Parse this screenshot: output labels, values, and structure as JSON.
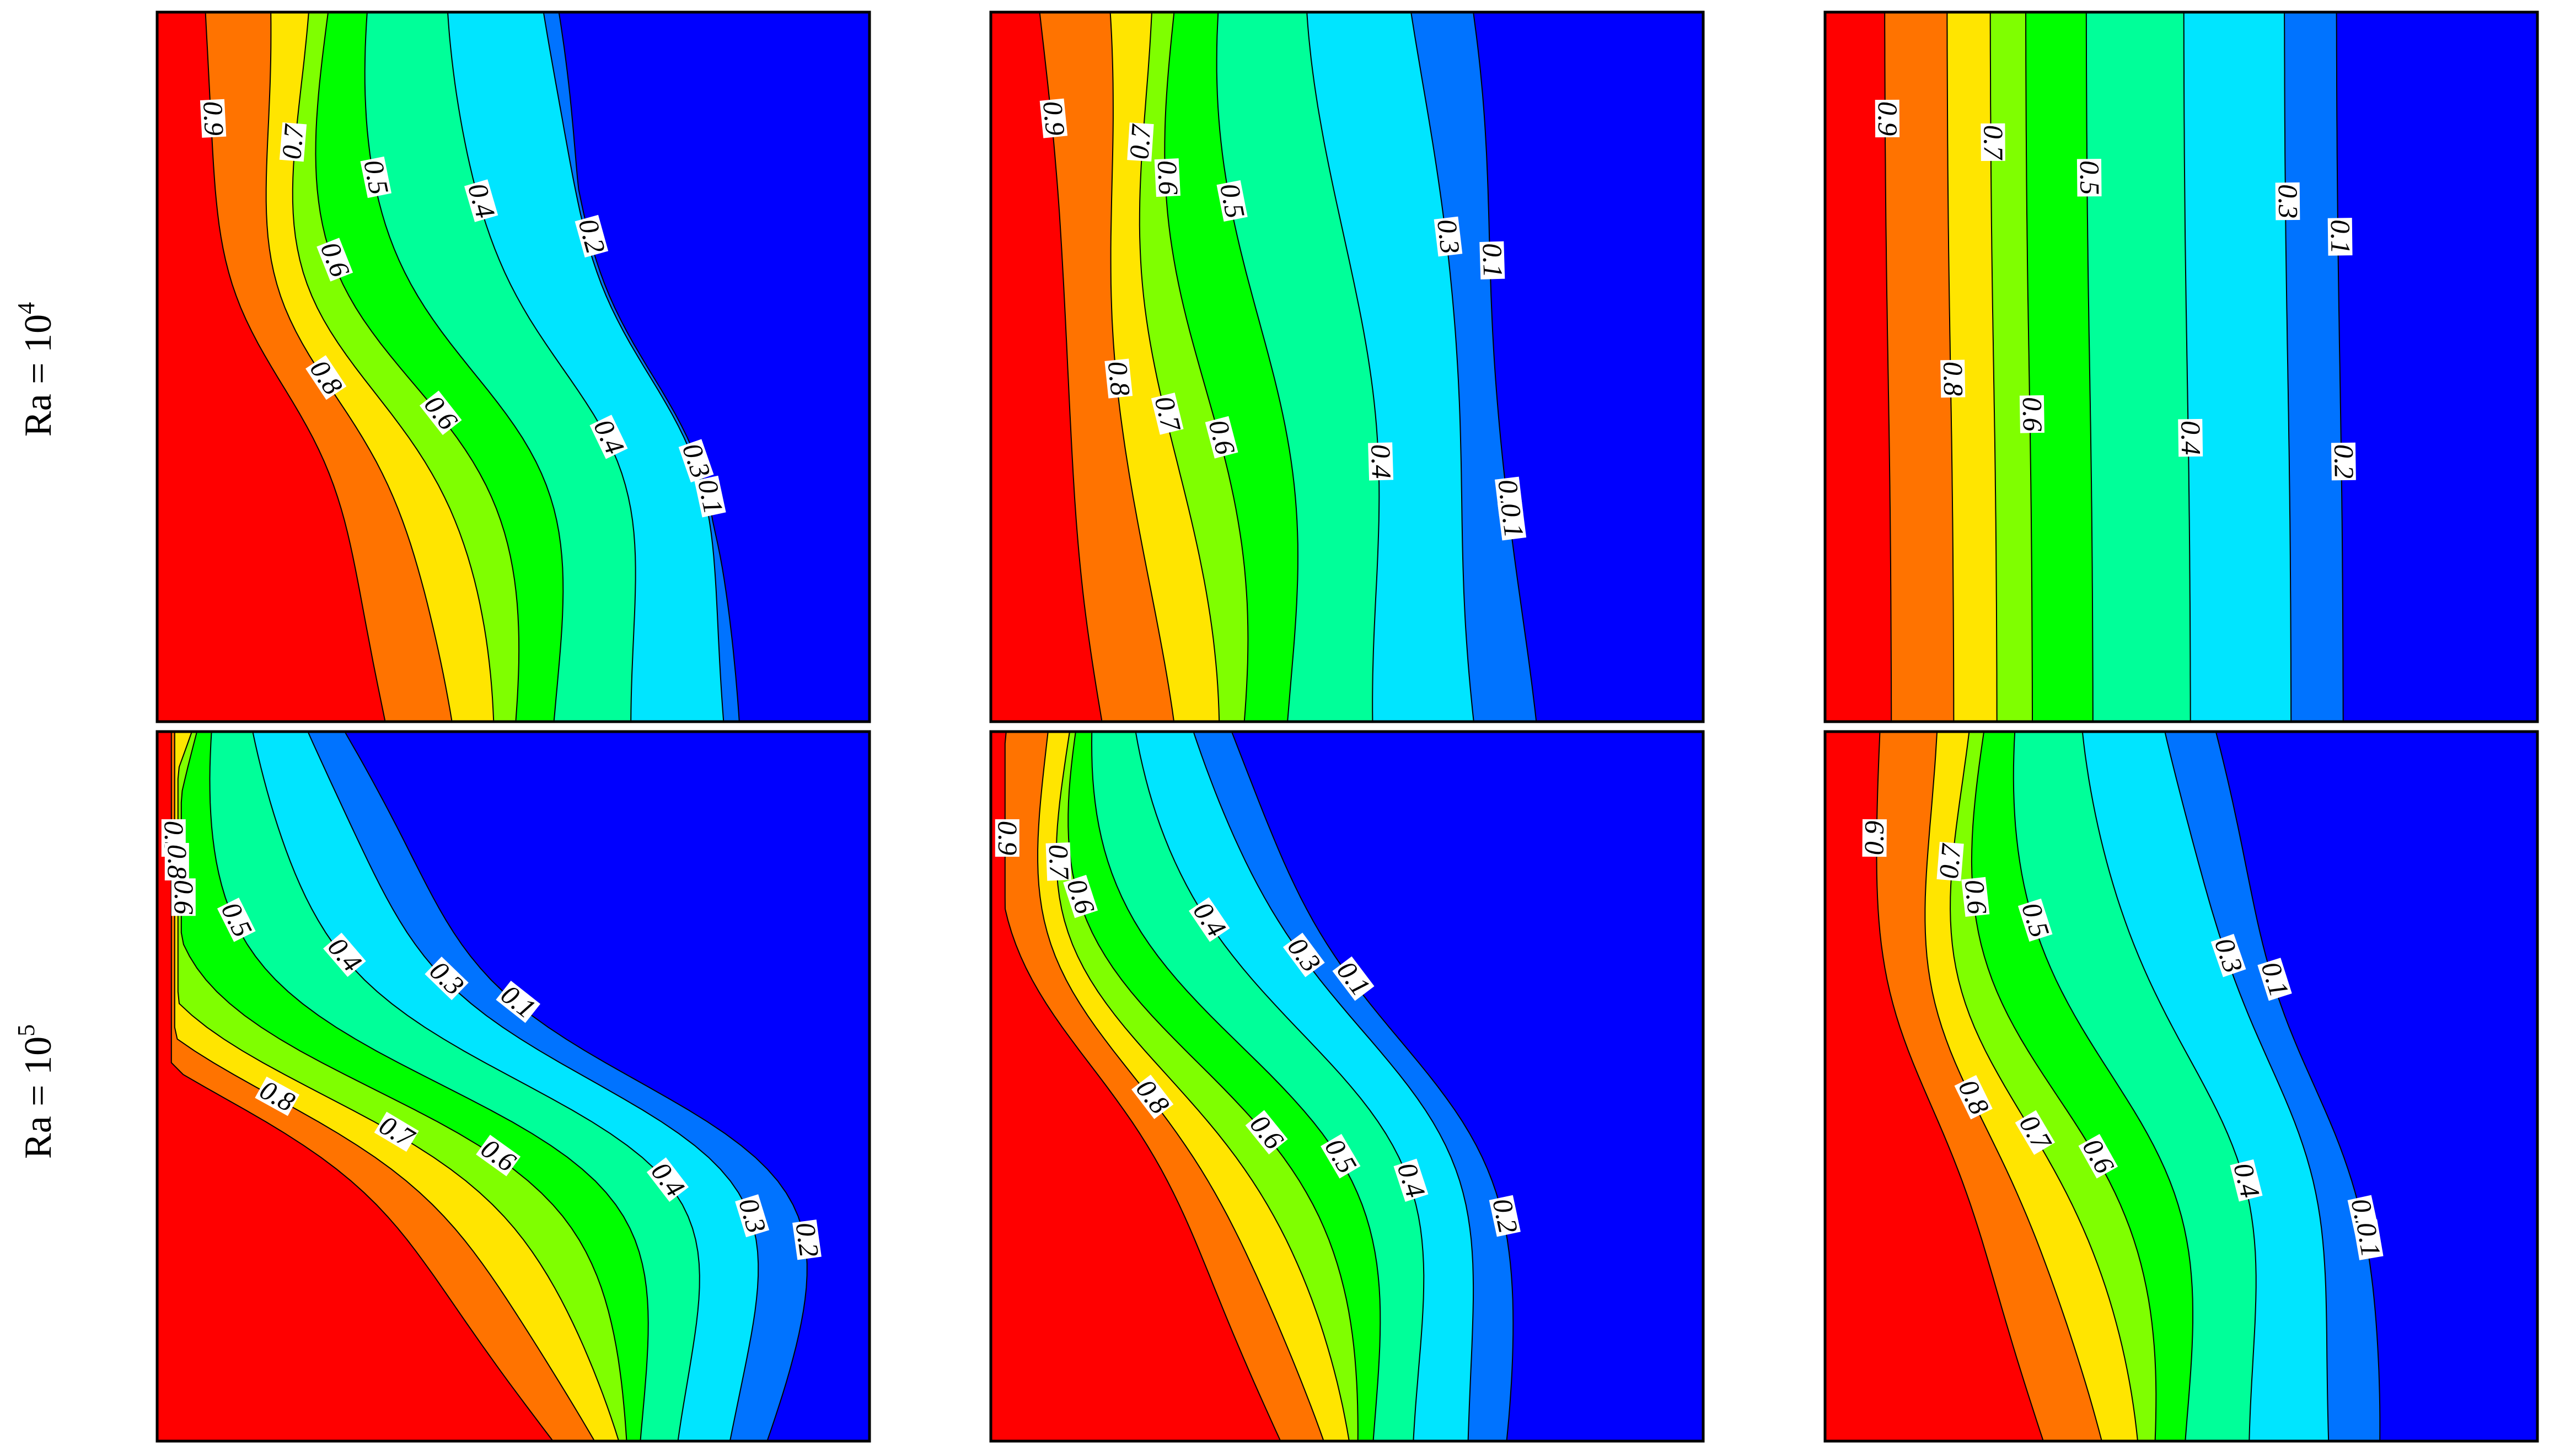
{
  "palette": [
    "#0000ff",
    "#0073ff",
    "#00e5ff",
    "#00ff99",
    "#00ff00",
    "#7fff00",
    "#ffe500",
    "#ff7300",
    "#ff0000"
  ],
  "row_labels": {
    "row0": {
      "base": "Ra = 10",
      "exp": "4"
    },
    "row1": {
      "base": "Ra = 10",
      "exp": "5"
    }
  },
  "chart_data": {
    "type": "contour",
    "title": "",
    "field": "isotherms (filled contour map)",
    "contour_levels": [
      0.1,
      0.2,
      0.3,
      0.4,
      0.5,
      0.6,
      0.7,
      0.8,
      0.9
    ],
    "value_range": [
      0,
      1
    ],
    "colormap": [
      "blue (0.0-0.1)",
      "azure (0.1-0.2)",
      "cyan (0.2-0.3)",
      "spring green (0.3-0.4)",
      "green (0.4-0.5)",
      "chartreuse (0.5-0.6)",
      "yellow (0.6-0.7)",
      "orange (0.7-0.8)",
      "red (0.8-1.0)"
    ],
    "layout": "2 rows x 3 columns",
    "panels": [
      {
        "row": "Ra = 10^4",
        "column": 1,
        "inline_labels": [
          "0.9",
          "0.8",
          "0.7",
          "0.6",
          "0.5",
          "0.4",
          "0.4",
          "0.3",
          "0.2",
          "0.1",
          "0.6"
        ]
      },
      {
        "row": "Ra = 10^4",
        "column": 2,
        "inline_labels": [
          "0.9",
          "0.8",
          "0.7",
          "0.7",
          "0.6",
          "0.6",
          "0.5",
          "0.4",
          "0.3",
          "0.2",
          "0.1",
          "0.1"
        ]
      },
      {
        "row": "Ra = 10^4",
        "column": 3,
        "inline_labels": [
          "0.9",
          "0.8",
          "0.7",
          "0.6",
          "0.5",
          "0.4",
          "0.3",
          "0.2",
          "0.1"
        ]
      },
      {
        "row": "Ra = 10^5",
        "column": 1,
        "inline_labels": [
          "0.9",
          "0.8",
          "0.8",
          "0.7",
          "0.6",
          "0.6",
          "0.5",
          "0.4",
          "0.4",
          "0.3",
          "0.3",
          "0.2",
          "0.1"
        ]
      },
      {
        "row": "Ra = 10^5",
        "column": 2,
        "inline_labels": [
          "0.9",
          "0.8",
          "0.7",
          "0.6",
          "0.6",
          "0.5",
          "0.4",
          "0.4",
          "0.3",
          "0.2",
          "0.1"
        ]
      },
      {
        "row": "Ra = 10^5",
        "column": 3,
        "inline_labels": [
          "0.9",
          "0.8",
          "0.7",
          "0.7",
          "0.6",
          "0.6",
          "0.5",
          "0.4",
          "0.3",
          "0.2",
          "0.1",
          "0.1"
        ]
      }
    ]
  }
}
